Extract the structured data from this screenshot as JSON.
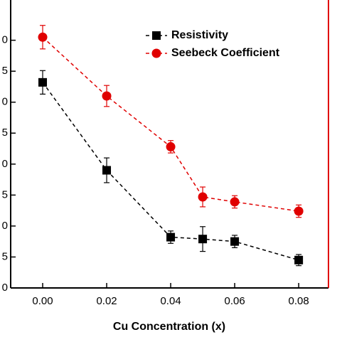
{
  "chart_data": {
    "type": "line",
    "xlabel": "Cu Concentration (x)",
    "x": [
      0,
      0.02,
      0.04,
      0.05,
      0.06,
      0.08
    ],
    "series": [
      {
        "name": "Resistivity",
        "color": "#000000",
        "marker": "square",
        "values": [
          33.2,
          19.0,
          8.2,
          7.9,
          7.5,
          4.5
        ],
        "errors": [
          1.9,
          2.0,
          1.0,
          2.0,
          1.0,
          0.9
        ]
      },
      {
        "name": "Seebeck Coefficient",
        "color": "#e00000",
        "marker": "circle",
        "values": [
          40.5,
          31.0,
          22.8,
          14.7,
          13.9,
          12.4
        ],
        "errors": [
          1.9,
          1.7,
          1.0,
          1.6,
          1.0,
          1.0
        ]
      }
    ],
    "xlim": [
      -0.01,
      0.0893
    ],
    "xticks": [
      {
        "value": 0,
        "label": "0.00"
      },
      0.02,
      0.04,
      0.06,
      0.08
    ],
    "ylim": [
      0,
      46.5
    ],
    "yticks": [
      {
        "value": 0,
        "label": "0"
      },
      5,
      {
        "value": 10,
        "label": "0"
      },
      {
        "value": 15,
        "label": "5"
      },
      {
        "value": 20,
        "label": "0"
      },
      {
        "value": 25,
        "label": "5"
      },
      {
        "value": 30,
        "label": "0"
      },
      {
        "value": 35,
        "label": "5"
      },
      {
        "value": 40,
        "label": "0"
      }
    ],
    "legend": "upper right",
    "right_axis_color": "#e00000"
  }
}
